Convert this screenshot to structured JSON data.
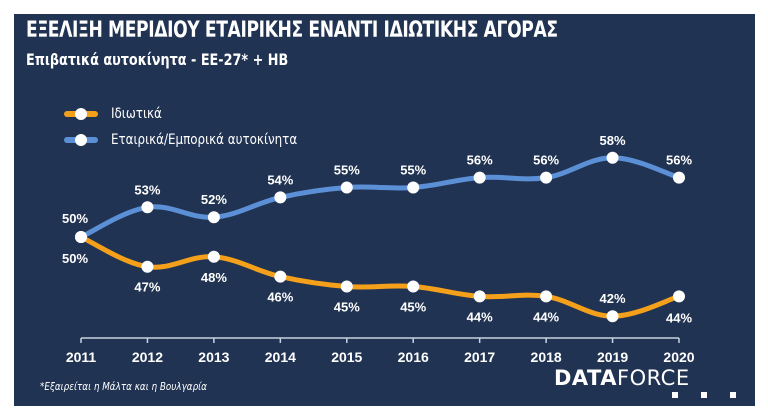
{
  "chart_data": {
    "type": "line",
    "title": "ΕΞΕΛΙΞΗ ΜΕΡΙΔΙΟΥ ΕΤΑΙΡΙΚΗΣ ΕΝΑΝΤΙ ΙΔΙΩΤΙΚΗΣ ΑΓΟΡΑΣ",
    "subtitle": "Επιβατικά αυτοκίνητα - ΕΕ-27* + ΗΒ",
    "xlabel": "",
    "ylabel": "",
    "categories": [
      "2011",
      "2012",
      "2013",
      "2014",
      "2015",
      "2016",
      "2017",
      "2018",
      "2019",
      "2020"
    ],
    "series": [
      {
        "name": "Ιδιωτικά",
        "color": "#f5a01a",
        "values": [
          50,
          47,
          48,
          46,
          45,
          45,
          44,
          44,
          42,
          44
        ],
        "labels": [
          "50%",
          "47%",
          "48%",
          "46%",
          "45%",
          "45%",
          "44%",
          "44%",
          "42%",
          "44%"
        ]
      },
      {
        "name": "Εταιρικά/Εμπορικά αυτοκίνητα",
        "color": "#5b8fd6",
        "values": [
          50,
          53,
          52,
          54,
          55,
          55,
          56,
          56,
          58,
          56
        ],
        "labels": [
          "50%",
          "53%",
          "52%",
          "54%",
          "55%",
          "55%",
          "56%",
          "56%",
          "58%",
          "56%"
        ]
      }
    ],
    "legend_position": "top-left",
    "grid": false,
    "footnote": "*Εξαιρείται η Μάλτα και η Βουλγαρία"
  },
  "branding": {
    "logo_bold": "DATA",
    "logo_light": "FORCE"
  },
  "colors": {
    "background": "#213352",
    "text": "#ffffff",
    "axis": "#c8d2e0"
  }
}
